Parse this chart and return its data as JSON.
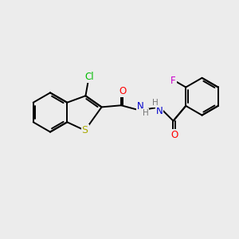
{
  "background_color": "#ececec",
  "bond_color": "#000000",
  "atom_colors": {
    "Cl": "#00bb00",
    "S": "#aaaa00",
    "N": "#0000cc",
    "O": "#ff0000",
    "F": "#cc00cc",
    "H": "#777777",
    "C": "#000000"
  },
  "figsize": [
    3.0,
    3.0
  ],
  "dpi": 100,
  "lw": 1.4,
  "fs": 8.5
}
